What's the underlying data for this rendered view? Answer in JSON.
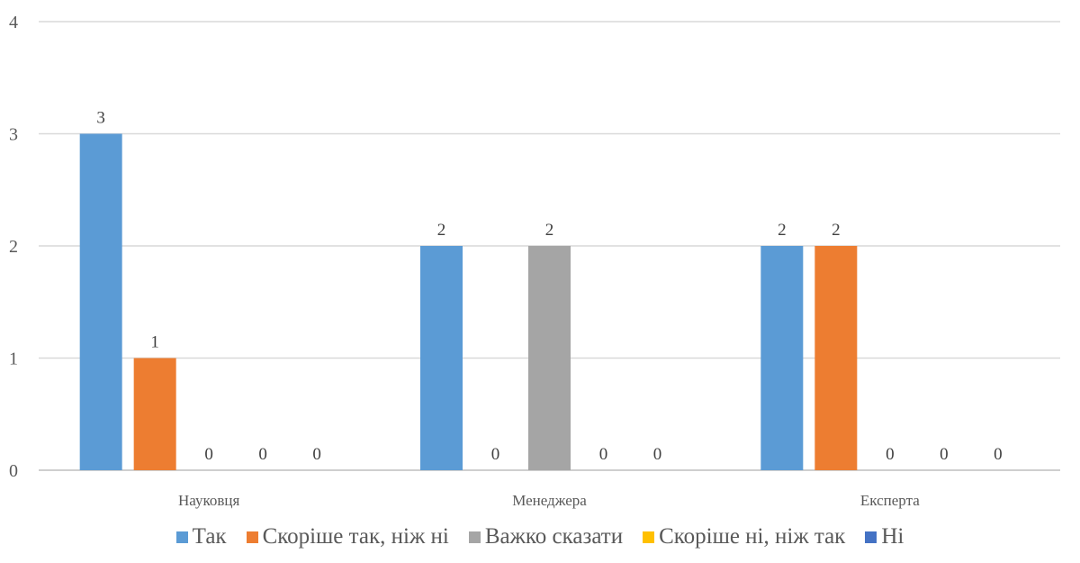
{
  "chart_data": {
    "type": "bar",
    "categories": [
      "Науковця",
      "Менеджера",
      "Експерта"
    ],
    "series": [
      {
        "name": "Так",
        "values": [
          3,
          2,
          2
        ],
        "color": "#5B9BD5"
      },
      {
        "name": "Скоріше так, ніж ні",
        "values": [
          1,
          0,
          2
        ],
        "color": "#ED7D31"
      },
      {
        "name": "Важко сказати",
        "values": [
          0,
          2,
          0
        ],
        "color": "#A5A5A5"
      },
      {
        "name": "Скоріше ні, ніж так",
        "values": [
          0,
          0,
          0
        ],
        "color": "#FFC000"
      },
      {
        "name": "Ні",
        "values": [
          0,
          0,
          0
        ],
        "color": "#4472C4"
      }
    ],
    "y_ticks": [
      "0",
      "1",
      "2",
      "3",
      "4"
    ],
    "ylim": [
      0,
      4
    ],
    "grid": true,
    "legend_position": "bottom",
    "data_labels": true
  }
}
